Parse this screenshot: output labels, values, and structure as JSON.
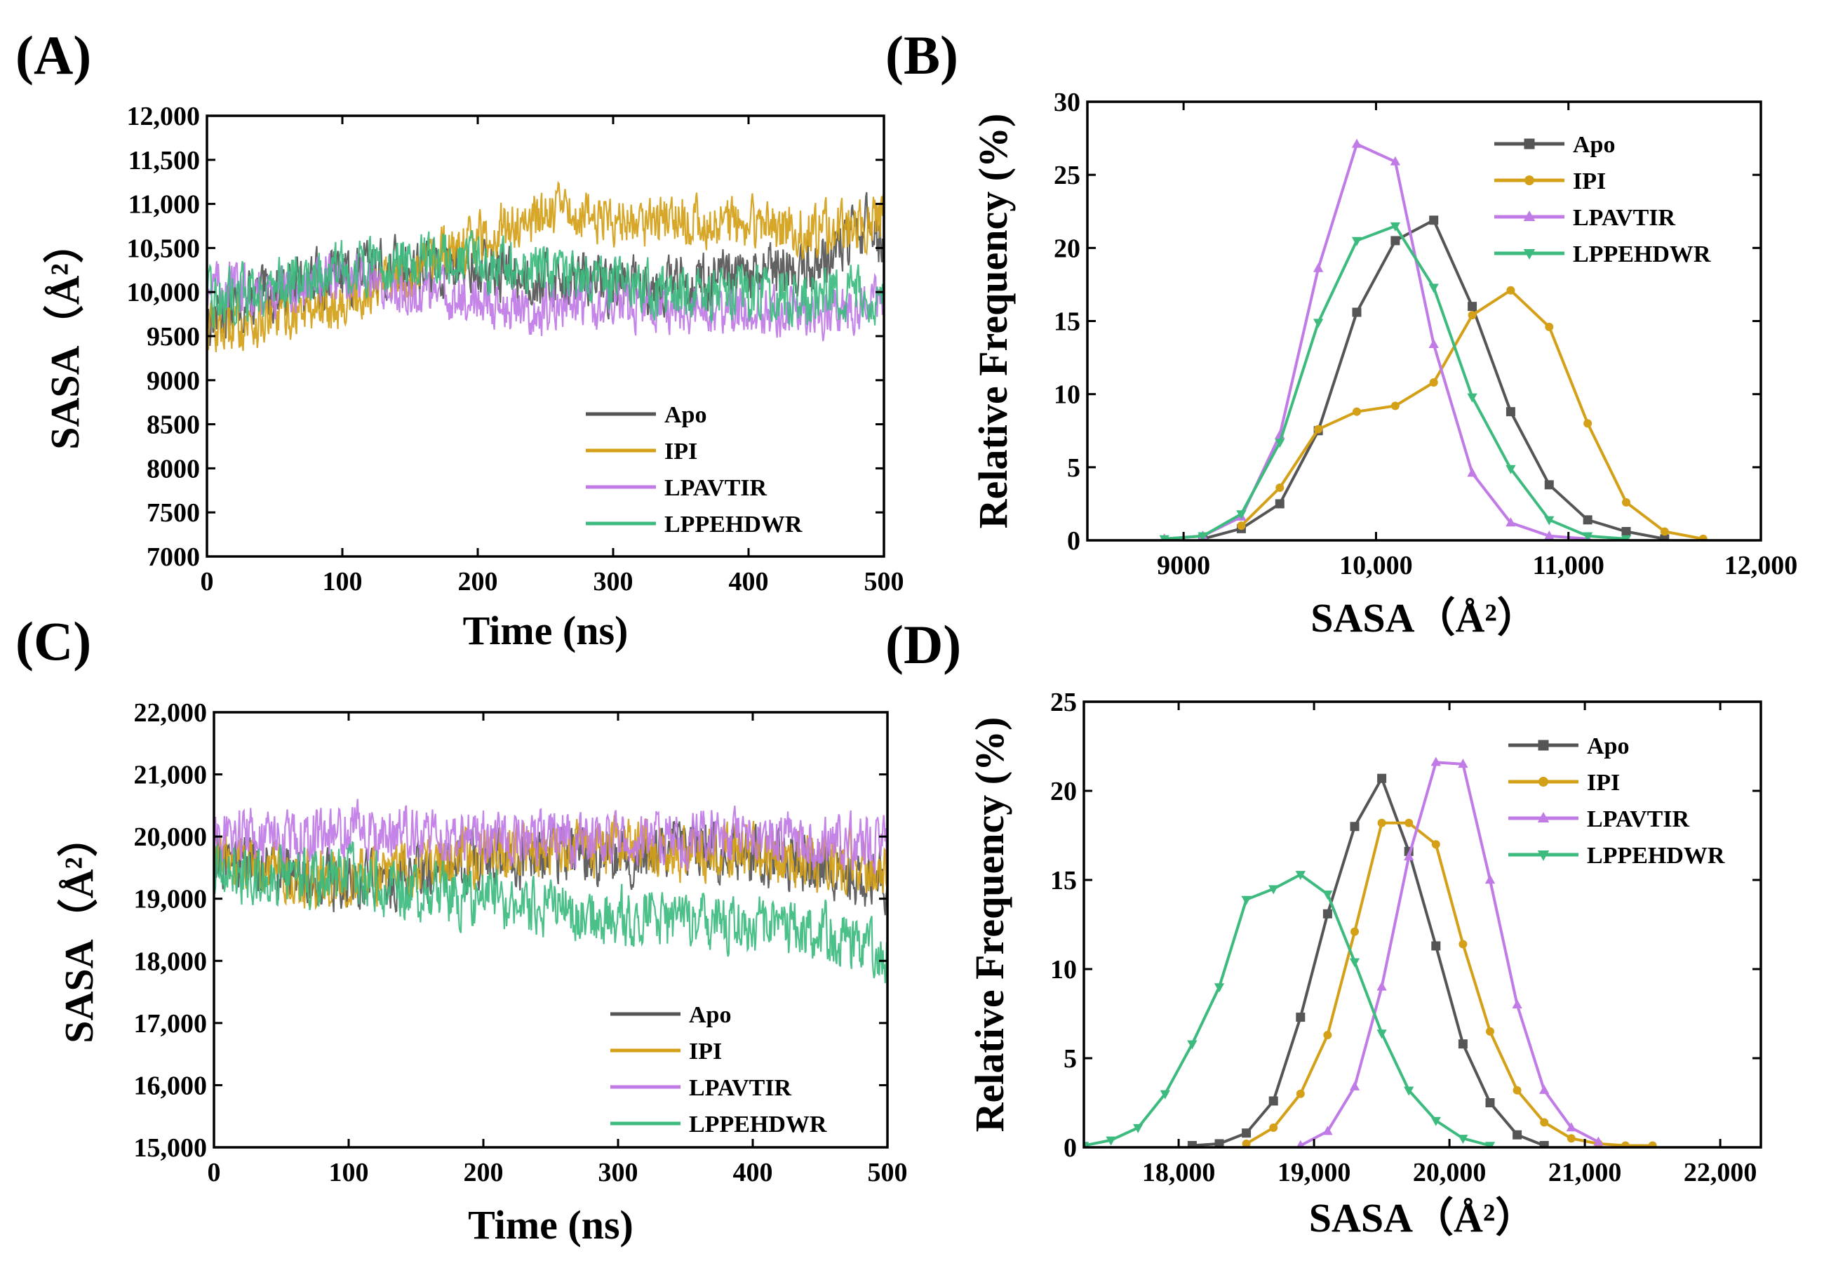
{
  "colors": {
    "Apo": "#555555",
    "IPI": "#d4a017",
    "LPAVTIR": "#c07be6",
    "LPPEHDWR": "#3dbb7f"
  },
  "chart_data": [
    {
      "panel": "(A)",
      "type": "line",
      "xlabel": "Time (ns)",
      "ylabel": "SASA（Å²）",
      "xlim": [
        0,
        500
      ],
      "ylim": [
        7000,
        12000
      ],
      "xticks": [
        0,
        100,
        200,
        300,
        400,
        500
      ],
      "xtick_labels": [
        "0",
        "100",
        "200",
        "300",
        "400",
        "500"
      ],
      "yticks": [
        7000,
        7500,
        8000,
        8500,
        9000,
        9500,
        10000,
        10500,
        11000,
        11500,
        12000
      ],
      "ytick_labels": [
        "7000",
        "7500",
        "8000",
        "8500",
        "9000",
        "9500",
        "10,000",
        "10,500",
        "11,000",
        "11,500",
        "12,000"
      ],
      "legend_position": "lower-right",
      "series": [
        {
          "name": "Apo",
          "x": [
            0,
            50,
            100,
            150,
            200,
            250,
            300,
            350,
            400,
            450,
            490,
            500
          ],
          "y": [
            9700,
            10000,
            10200,
            10300,
            10250,
            10150,
            10100,
            10100,
            10150,
            10300,
            10800,
            10500
          ],
          "noise": 450
        },
        {
          "name": "IPI",
          "x": [
            0,
            50,
            100,
            150,
            200,
            250,
            300,
            350,
            400,
            450,
            500
          ],
          "y": [
            9600,
            9700,
            9900,
            10200,
            10600,
            10900,
            10850,
            10800,
            10750,
            10700,
            10800
          ],
          "noise": 420
        },
        {
          "name": "LPAVTIR",
          "x": [
            0,
            50,
            100,
            150,
            200,
            250,
            300,
            350,
            400,
            450,
            500
          ],
          "y": [
            10100,
            10000,
            10200,
            10000,
            9900,
            9800,
            9850,
            9750,
            9800,
            9750,
            9900
          ],
          "noise": 380
        },
        {
          "name": "LPPEHDWR",
          "x": [
            0,
            50,
            100,
            150,
            200,
            250,
            300,
            350,
            400,
            450,
            500
          ],
          "y": [
            9900,
            10100,
            10250,
            10350,
            10300,
            10200,
            10100,
            10000,
            10000,
            9950,
            9950
          ],
          "noise": 420
        }
      ]
    },
    {
      "panel": "(B)",
      "type": "line",
      "xlabel": "SASA（Å²）",
      "ylabel": "Relative Frequency (%)",
      "xlim": [
        8500,
        12000
      ],
      "ylim": [
        0,
        30
      ],
      "xticks": [
        9000,
        10000,
        11000,
        12000
      ],
      "xtick_labels": [
        "9000",
        "10,000",
        "11,000",
        "12,000"
      ],
      "yticks": [
        0,
        5,
        10,
        15,
        20,
        25,
        30
      ],
      "ytick_labels": [
        "0",
        "5",
        "10",
        "15",
        "20",
        "25",
        "30"
      ],
      "legend_position": "top-right",
      "series": [
        {
          "name": "Apo",
          "marker": "square",
          "x": [
            9100,
            9300,
            9500,
            9700,
            9900,
            10100,
            10300,
            10500,
            10700,
            10900,
            11100,
            11300,
            11500
          ],
          "y": [
            0.1,
            0.8,
            2.5,
            7.5,
            15.6,
            20.5,
            21.9,
            16,
            8.8,
            3.8,
            1.4,
            0.6,
            0.1
          ]
        },
        {
          "name": "IPI",
          "marker": "circle",
          "x": [
            9300,
            9500,
            9700,
            9900,
            10100,
            10300,
            10500,
            10700,
            10900,
            11100,
            11300,
            11500,
            11700
          ],
          "y": [
            1,
            3.6,
            7.6,
            8.8,
            9.2,
            10.8,
            15.4,
            17.1,
            14.6,
            8,
            2.6,
            0.6,
            0.1
          ]
        },
        {
          "name": "LPAVTIR",
          "marker": "triangle-up",
          "x": [
            8900,
            9100,
            9300,
            9500,
            9700,
            9900,
            10100,
            10300,
            10500,
            10700,
            10900,
            11100
          ],
          "y": [
            0.1,
            0.3,
            1.6,
            7.2,
            18.6,
            27.1,
            25.9,
            13.4,
            4.6,
            1.2,
            0.3,
            0.1
          ]
        },
        {
          "name": "LPPEHDWR",
          "marker": "triangle-down",
          "x": [
            8900,
            9100,
            9300,
            9500,
            9700,
            9900,
            10100,
            10300,
            10500,
            10700,
            10900,
            11100,
            11300
          ],
          "y": [
            0.1,
            0.3,
            1.8,
            6.7,
            14.9,
            20.5,
            21.5,
            17.3,
            9.8,
            4.9,
            1.4,
            0.3,
            0.1
          ]
        }
      ]
    },
    {
      "panel": "(C)",
      "type": "line",
      "xlabel": "Time (ns)",
      "ylabel": "SASA（Å²）",
      "xlim": [
        0,
        500
      ],
      "ylim": [
        15000,
        22000
      ],
      "xticks": [
        0,
        100,
        200,
        300,
        400,
        500
      ],
      "xtick_labels": [
        "0",
        "100",
        "200",
        "300",
        "400",
        "500"
      ],
      "yticks": [
        15000,
        16000,
        17000,
        18000,
        19000,
        20000,
        21000,
        22000
      ],
      "ytick_labels": [
        "15,000",
        "16,000",
        "17,000",
        "18,000",
        "19,000",
        "20,000",
        "21,000",
        "22,000"
      ],
      "legend_position": "lower-right",
      "series": [
        {
          "name": "Apo",
          "x": [
            0,
            50,
            100,
            150,
            200,
            250,
            300,
            350,
            400,
            450,
            500
          ],
          "y": [
            19700,
            19400,
            19300,
            19400,
            19600,
            19700,
            19700,
            19800,
            19700,
            19500,
            19300
          ],
          "noise": 650
        },
        {
          "name": "IPI",
          "x": [
            0,
            50,
            100,
            150,
            200,
            250,
            300,
            350,
            400,
            450,
            500
          ],
          "y": [
            19600,
            19400,
            19300,
            19500,
            19700,
            19800,
            19800,
            19800,
            19700,
            19600,
            19500
          ],
          "noise": 650
        },
        {
          "name": "LPAVTIR",
          "x": [
            0,
            50,
            100,
            150,
            200,
            250,
            300,
            350,
            400,
            450,
            500
          ],
          "y": [
            20000,
            20000,
            20100,
            20050,
            20000,
            20000,
            19950,
            20000,
            19950,
            19900,
            19900
          ],
          "noise": 600
        },
        {
          "name": "LPPEHDWR",
          "x": [
            0,
            50,
            100,
            150,
            200,
            250,
            300,
            350,
            400,
            450,
            500
          ],
          "y": [
            19400,
            19300,
            19400,
            19100,
            19000,
            18800,
            18700,
            18600,
            18600,
            18500,
            18000
          ],
          "noise": 650
        }
      ]
    },
    {
      "panel": "(D)",
      "type": "line",
      "xlabel": "SASA（Å²）",
      "ylabel": "Relative Frequency (%)",
      "xlim": [
        17300,
        22300
      ],
      "ylim": [
        0,
        25
      ],
      "xticks": [
        18000,
        19000,
        20000,
        21000,
        22000
      ],
      "xtick_labels": [
        "18,000",
        "19,000",
        "20,000",
        "21,000",
        "22,000"
      ],
      "yticks": [
        0,
        5,
        10,
        15,
        20,
        25
      ],
      "ytick_labels": [
        "0",
        "5",
        "10",
        "15",
        "20",
        "25"
      ],
      "legend_position": "top-right",
      "series": [
        {
          "name": "Apo",
          "marker": "square",
          "x": [
            18100,
            18300,
            18500,
            18700,
            18900,
            19100,
            19300,
            19500,
            19700,
            19900,
            20100,
            20300,
            20500,
            20700
          ],
          "y": [
            0.1,
            0.2,
            0.8,
            2.6,
            7.3,
            13.1,
            18,
            20.7,
            16.6,
            11.3,
            5.8,
            2.5,
            0.7,
            0.1
          ]
        },
        {
          "name": "IPI",
          "marker": "circle",
          "x": [
            18500,
            18700,
            18900,
            19100,
            19300,
            19500,
            19700,
            19900,
            20100,
            20300,
            20500,
            20700,
            20900,
            21100,
            21300,
            21500
          ],
          "y": [
            0.2,
            1.1,
            3,
            6.3,
            12.1,
            18.2,
            18.2,
            17,
            11.4,
            6.5,
            3.2,
            1.4,
            0.5,
            0.2,
            0.1,
            0.1
          ]
        },
        {
          "name": "LPAVTIR",
          "marker": "triangle-up",
          "x": [
            18900,
            19100,
            19300,
            19500,
            19700,
            19900,
            20100,
            20300,
            20500,
            20700,
            20900,
            21100
          ],
          "y": [
            0.1,
            0.9,
            3.4,
            9,
            16.3,
            21.6,
            21.5,
            15,
            8,
            3.2,
            1.1,
            0.3
          ]
        },
        {
          "name": "LPPEHDWR",
          "marker": "triangle-down",
          "x": [
            17300,
            17500,
            17700,
            17900,
            18100,
            18300,
            18500,
            18700,
            18900,
            19100,
            19300,
            19500,
            19700,
            19900,
            20100,
            20300
          ],
          "y": [
            0.1,
            0.4,
            1.1,
            3,
            5.8,
            9,
            13.9,
            14.5,
            15.3,
            14.2,
            10.4,
            6.4,
            3.2,
            1.5,
            0.5,
            0.1
          ]
        }
      ]
    }
  ]
}
